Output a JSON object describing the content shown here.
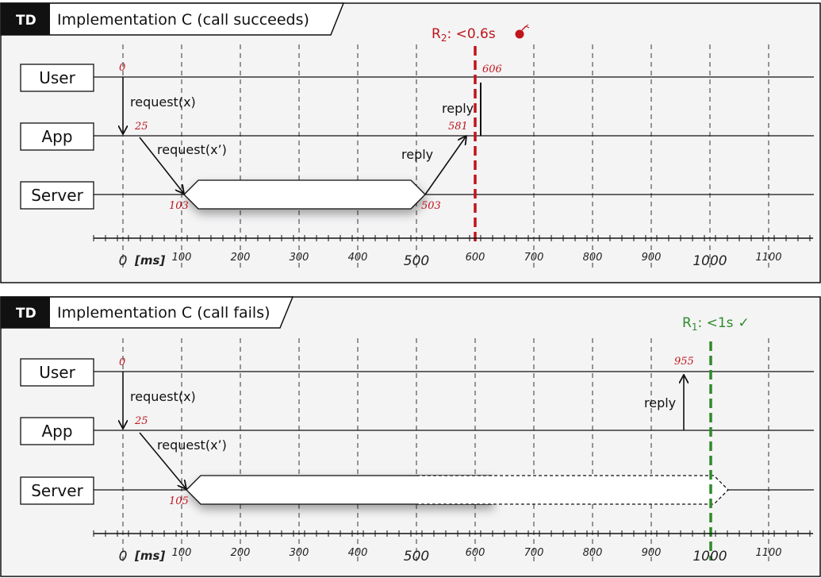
{
  "td_tag": "TD",
  "ms_label": "[ms]",
  "axis_ticks": {
    "small": [
      "100",
      "200",
      "300",
      "400",
      "600",
      "700",
      "800",
      "900",
      "1100"
    ],
    "big": [
      "0",
      "500",
      "1000"
    ]
  },
  "lifelines": {
    "user": "User",
    "app": "App",
    "server": "Server"
  },
  "panel1": {
    "title": "Implementation C (call succeeds)",
    "requirement": {
      "name": "R",
      "sub": "2",
      "text": ": <0.6s",
      "mark": "bomb-icon",
      "color": "#c0151b"
    },
    "msg_request_x": "request(x)",
    "msg_request_xp": "request(x’)",
    "msg_reply_server": "reply",
    "msg_reply_app": "reply",
    "t_user_start": "0",
    "t_app_recv": "25",
    "t_server_recv": "103",
    "t_server_done": "503",
    "t_app_reply": "581",
    "t_user_reply": "606"
  },
  "panel2": {
    "title": "Implementation C (call fails)",
    "requirement": {
      "name": "R",
      "sub": "1",
      "text": ": <1s",
      "mark": "✓",
      "color": "#2f8a2a"
    },
    "msg_request_x": "request(x)",
    "msg_request_xp": "request(x’)",
    "msg_reply_app": "reply",
    "t_user_start": "0",
    "t_app_recv": "25",
    "t_server_recv": "105",
    "t_user_reply": "955"
  }
}
